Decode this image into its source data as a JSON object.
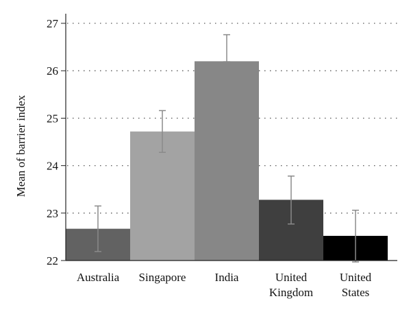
{
  "chart_data": {
    "type": "bar",
    "title": "",
    "xlabel": "",
    "ylabel": "Mean of barrier index",
    "categories": [
      [
        "Australia"
      ],
      [
        "Singapore"
      ],
      [
        "India"
      ],
      [
        "United",
        "Kingdom"
      ],
      [
        "United",
        "States"
      ]
    ],
    "values": [
      22.67,
      24.72,
      26.2,
      23.28,
      22.52
    ],
    "error_low": [
      22.19,
      24.28,
      26.19,
      22.77,
      21.97
    ],
    "error_high": [
      23.15,
      25.16,
      26.76,
      23.78,
      23.06
    ],
    "colors": [
      "#626262",
      "#a3a3a3",
      "#878787",
      "#3f3f3f",
      "#000000"
    ],
    "ylim": [
      22,
      27
    ],
    "yticks": [
      "22",
      "23",
      "24",
      "25",
      "26",
      "27"
    ],
    "grid": "dotted horizontal",
    "legend": "none"
  }
}
